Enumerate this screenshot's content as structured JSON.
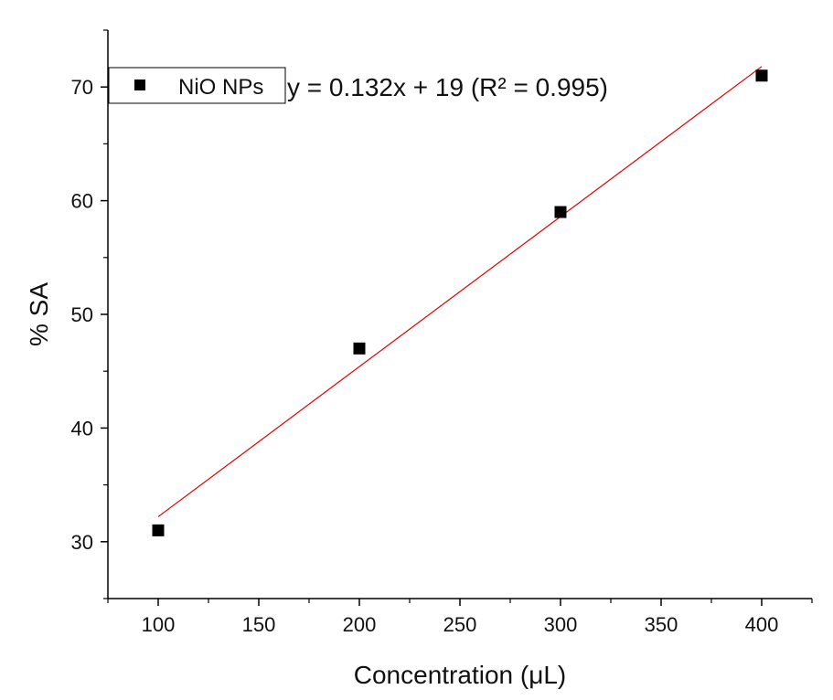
{
  "chart_data": {
    "type": "scatter",
    "xlabel": "Concentration (μL)",
    "ylabel": "% SA",
    "xlim": [
      75,
      425
    ],
    "ylim": [
      25,
      75
    ],
    "xticks": [
      100,
      150,
      200,
      250,
      300,
      350,
      400
    ],
    "yticks": [
      30,
      40,
      50,
      60,
      70
    ],
    "series": [
      {
        "name": "NiO NPs",
        "x": [
          100,
          200,
          300,
          400
        ],
        "y": [
          31,
          47,
          59,
          71
        ],
        "marker": "square",
        "color": "#000000"
      }
    ],
    "fit": {
      "equation": "y = 0.132x + 19 (R² = 0.995)",
      "slope": 0.132,
      "intercept": 19,
      "x_range": [
        100,
        400
      ],
      "color": "#e00000"
    },
    "legend": {
      "position": "top-left"
    }
  }
}
